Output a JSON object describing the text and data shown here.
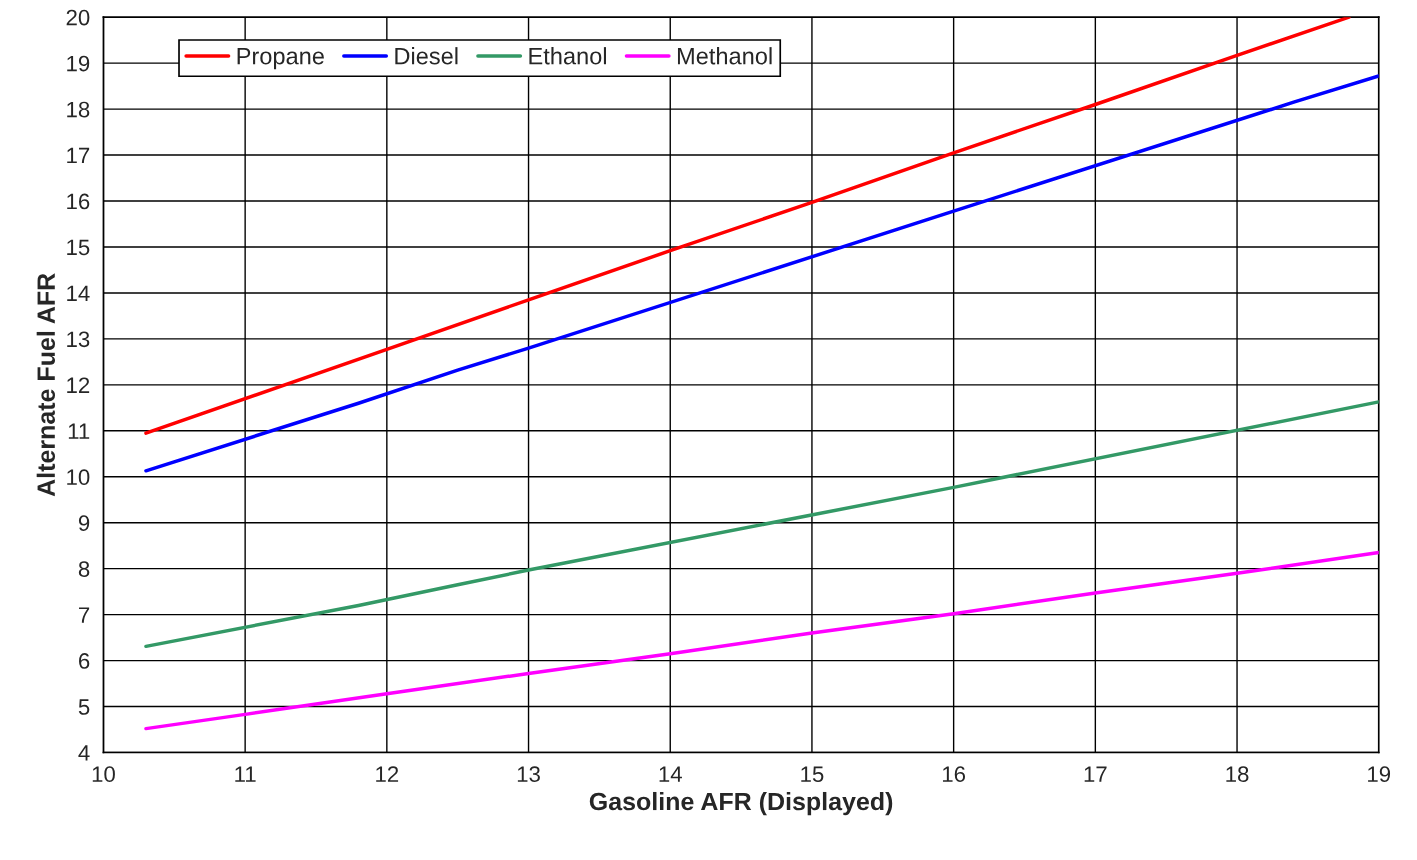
{
  "chart_data": {
    "type": "line",
    "xlabel": "Gasoline AFR (Displayed)",
    "ylabel": "Alternate Fuel AFR",
    "xlim": [
      10,
      19
    ],
    "xticks": [
      10,
      11,
      12,
      13,
      14,
      15,
      16,
      17,
      18,
      19
    ],
    "ylim": [
      4,
      20
    ],
    "yticks": [
      4,
      5,
      6,
      7,
      8,
      9,
      10,
      11,
      12,
      13,
      14,
      15,
      16,
      17,
      18,
      19,
      20
    ],
    "grid": true,
    "legend": "top left",
    "marker": "none",
    "line_style": "solid",
    "series": [
      {
        "name": "Propane",
        "color": "#ff0000",
        "x": [
          10.3,
          12,
          13,
          14,
          15,
          16,
          17,
          18,
          18.79
        ],
        "values": [
          10.95,
          12.77,
          13.85,
          14.92,
          15.97,
          17.05,
          18.1,
          19.17,
          20
        ]
      },
      {
        "name": "Diesel",
        "color": "#0000ff",
        "x": [
          10.3,
          11.8,
          12.5,
          13,
          16,
          18.4,
          19
        ],
        "values": [
          10.13,
          11.6,
          12.32,
          12.8,
          15.78,
          18.15,
          18.72
        ]
      },
      {
        "name": "Ethanol",
        "color": "#339966",
        "x": [
          10.3,
          11.8,
          12.5,
          13,
          16,
          19
        ],
        "values": [
          6.31,
          7.2,
          7.65,
          7.97,
          9.77,
          11.63
        ]
      },
      {
        "name": "Methanol",
        "color": "#ff00ff",
        "x": [
          10.3,
          11,
          12,
          13,
          14,
          15,
          16,
          17,
          18,
          19
        ],
        "values": [
          4.52,
          4.83,
          5.28,
          5.72,
          6.15,
          6.6,
          7.02,
          7.47,
          7.9,
          8.35
        ]
      }
    ]
  }
}
